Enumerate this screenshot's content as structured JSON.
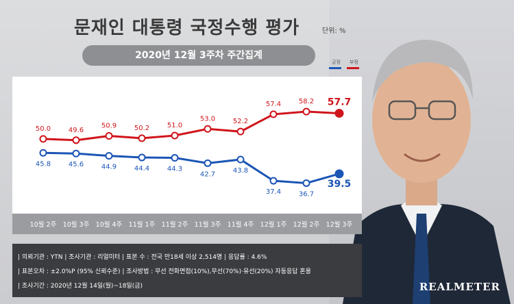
{
  "header": {
    "title": "문재인 대통령 국정수행 평가",
    "unit": "단위: %",
    "subtitle": "2020년 12월 3주차 주간집계"
  },
  "legend": {
    "positive": "긍정",
    "negative": "부정"
  },
  "colors": {
    "positive": "#1b55b5",
    "negative": "#d0141b"
  },
  "chart_data": {
    "type": "line",
    "categories": [
      "10월 2주",
      "10월 3주",
      "10월 4주",
      "11월 1주",
      "11월 2주",
      "11월 3주",
      "11월 4주",
      "12월 1주",
      "12월 2주",
      "12월 3주"
    ],
    "series": [
      {
        "name": "부정",
        "color": "#d0141b",
        "values": [
          50.0,
          49.6,
          50.9,
          50.2,
          51.0,
          53.0,
          52.2,
          57.4,
          58.2,
          57.7
        ],
        "labels": [
          "50.0",
          "49.6",
          "50.9",
          "50.2",
          "51.0",
          "53.0",
          "52.2",
          "57.4",
          "58.2",
          "57.7"
        ]
      },
      {
        "name": "긍정",
        "color": "#1b55b5",
        "values": [
          45.8,
          45.6,
          44.9,
          44.4,
          44.3,
          42.7,
          43.8,
          37.4,
          36.7,
          39.5
        ],
        "labels": [
          "45.8",
          "45.6",
          "44.9",
          "44.4",
          "44.3",
          "42.7",
          "43.8",
          "37.4",
          "36.7",
          "39.5"
        ]
      }
    ],
    "ylim": [
      30,
      65
    ]
  },
  "info": {
    "line1": "| 의뢰기관 : YTN   |   조사기관 : 리얼미터   |   표본 수 : 전국 만18세 이상 2,514명   |   응답률 : 4.6%",
    "line2": "| 표본오차 : ±2.0%P (95% 신뢰수준)   |   조사방법 : 무선 전화면접(10%),무선(70%)·유선(20%) 자동응답 혼용",
    "line3": "| 조사기간 : 2020년 12월 14일(월)~18일(금)"
  },
  "brand": "REALMETER"
}
